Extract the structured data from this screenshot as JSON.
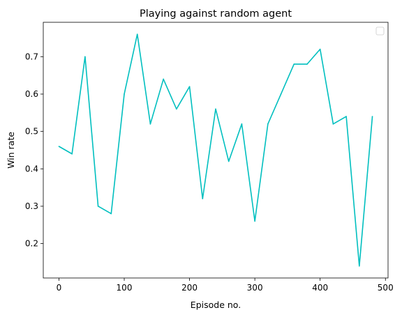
{
  "chart_data": {
    "type": "line",
    "title": "Playing against random agent",
    "xlabel": "Episode no.",
    "ylabel": "Win rate",
    "xlim": [
      -24,
      504
    ],
    "ylim": [
      0.108,
      0.792
    ],
    "xticks": [
      0,
      100,
      200,
      300,
      400,
      500
    ],
    "yticks": [
      0.2,
      0.3,
      0.4,
      0.5,
      0.6,
      0.7
    ],
    "grid": false,
    "legend": "top-right (empty)",
    "series": [
      {
        "color": "#00bfbf",
        "x": [
          0,
          20,
          40,
          60,
          80,
          100,
          120,
          140,
          160,
          180,
          200,
          220,
          240,
          260,
          280,
          300,
          320,
          340,
          360,
          380,
          400,
          420,
          440,
          460,
          480
        ],
        "y": [
          0.46,
          0.44,
          0.7,
          0.3,
          0.28,
          0.6,
          0.76,
          0.52,
          0.64,
          0.56,
          0.62,
          0.32,
          0.56,
          0.42,
          0.52,
          0.26,
          0.52,
          0.6,
          0.68,
          0.68,
          0.72,
          0.52,
          0.54,
          0.14,
          0.54
        ]
      }
    ]
  }
}
